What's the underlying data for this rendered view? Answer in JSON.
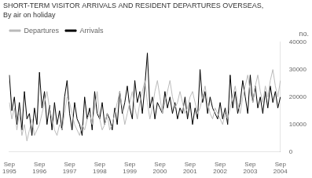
{
  "chart_data": {
    "type": "line",
    "title": "SHORT-TERM VISITOR ARRIVALS AND RESIDENT DEPARTURES OVERSEAS,",
    "subtitle": "By air on holiday",
    "ylabel": "no.",
    "categories": [
      "Sep\n1995",
      null,
      null,
      null,
      null,
      null,
      null,
      null,
      null,
      null,
      null,
      null,
      "Sep\n1996",
      null,
      null,
      null,
      null,
      null,
      null,
      null,
      null,
      null,
      null,
      null,
      "Sep\n1997",
      null,
      null,
      null,
      null,
      null,
      null,
      null,
      null,
      null,
      null,
      null,
      "Sep\n1998",
      null,
      null,
      null,
      null,
      null,
      null,
      null,
      null,
      null,
      null,
      null,
      "Sep\n1999",
      null,
      null,
      null,
      null,
      null,
      null,
      null,
      null,
      null,
      null,
      null,
      "Sep\n2000",
      null,
      null,
      null,
      null,
      null,
      null,
      null,
      null,
      null,
      null,
      null,
      "Sep\n2001",
      null,
      null,
      null,
      null,
      null,
      null,
      null,
      null,
      null,
      null,
      null,
      "Sep\n2002",
      null,
      null,
      null,
      null,
      null,
      null,
      null,
      null,
      null,
      null,
      null,
      "Sep\n2003",
      null,
      null,
      null,
      null,
      null,
      null,
      null,
      null,
      null,
      null,
      null,
      "Sep\n2004"
    ],
    "series": [
      {
        "name": "Departures",
        "color": "#bbbbbb",
        "values": [
          18000,
          12000,
          16000,
          8000,
          14000,
          6000,
          10000,
          4000,
          8000,
          12000,
          6000,
          8000,
          10000,
          14000,
          18000,
          22000,
          16000,
          12000,
          8000,
          6000,
          10000,
          8000,
          14000,
          20000,
          18000,
          14000,
          10000,
          8000,
          6000,
          10000,
          8000,
          12000,
          14000,
          10000,
          16000,
          22000,
          12000,
          8000,
          10000,
          14000,
          8000,
          10000,
          14000,
          18000,
          22000,
          16000,
          10000,
          14000,
          18000,
          22000,
          16000,
          12000,
          18000,
          22000,
          26000,
          18000,
          12000,
          16000,
          22000,
          26000,
          20000,
          14000,
          18000,
          22000,
          26000,
          20000,
          16000,
          18000,
          22000,
          18000,
          14000,
          16000,
          20000,
          22000,
          18000,
          14000,
          16000,
          20000,
          24000,
          18000,
          14000,
          12000,
          16000,
          14000,
          12000,
          10000,
          14000,
          12000,
          16000,
          20000,
          24000,
          18000,
          14000,
          20000,
          24000,
          28000,
          22000,
          18000,
          24000,
          28000,
          22000,
          18000,
          24000,
          20000,
          26000,
          30000,
          24000,
          20000,
          26000
        ]
      },
      {
        "name": "Arrivals",
        "color": "#000000",
        "values": [
          28000,
          15000,
          20000,
          10000,
          18000,
          8000,
          22000,
          12000,
          14000,
          6000,
          16000,
          10000,
          29000,
          16000,
          22000,
          10000,
          17000,
          8000,
          18000,
          10000,
          15000,
          8000,
          20000,
          26000,
          14000,
          8000,
          18000,
          12000,
          10000,
          6000,
          20000,
          12000,
          16000,
          8000,
          22000,
          14000,
          12000,
          18000,
          10000,
          14000,
          12000,
          8000,
          16000,
          10000,
          22000,
          14000,
          18000,
          24000,
          16000,
          12000,
          26000,
          18000,
          22000,
          14000,
          24000,
          36000,
          16000,
          20000,
          12000,
          18000,
          16000,
          14000,
          22000,
          16000,
          20000,
          14000,
          18000,
          12000,
          16000,
          14000,
          20000,
          12000,
          18000,
          10000,
          16000,
          12000,
          30000,
          18000,
          22000,
          14000,
          20000,
          16000,
          14000,
          12000,
          18000,
          12000,
          16000,
          10000,
          28000,
          16000,
          22000,
          14000,
          18000,
          26000,
          20000,
          14000,
          28000,
          18000,
          24000,
          16000,
          20000,
          14000,
          22000,
          16000,
          24000,
          18000,
          22000,
          16000,
          20000
        ]
      }
    ],
    "ylim": [
      0,
      40000
    ],
    "yticks": [
      0,
      10000,
      20000,
      30000,
      40000
    ],
    "grid": false,
    "legend": "upper left"
  }
}
